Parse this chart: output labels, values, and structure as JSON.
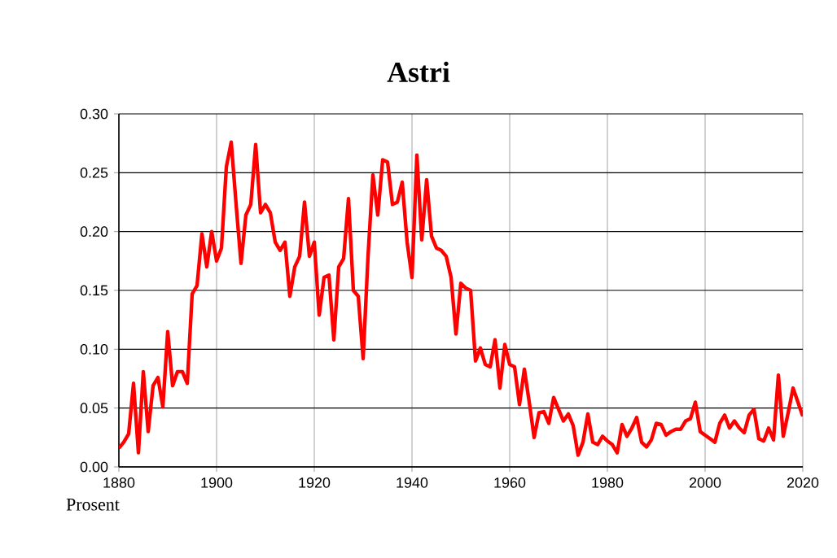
{
  "chart_data": {
    "type": "line",
    "title": "Astri",
    "ylabel": "Prosent",
    "x": [
      1880,
      1881,
      1882,
      1883,
      1884,
      1885,
      1886,
      1887,
      1888,
      1889,
      1890,
      1891,
      1892,
      1893,
      1894,
      1895,
      1896,
      1897,
      1898,
      1899,
      1900,
      1901,
      1902,
      1903,
      1904,
      1905,
      1906,
      1907,
      1908,
      1909,
      1910,
      1911,
      1912,
      1913,
      1914,
      1915,
      1916,
      1917,
      1918,
      1919,
      1920,
      1921,
      1922,
      1923,
      1924,
      1925,
      1926,
      1927,
      1928,
      1929,
      1930,
      1931,
      1932,
      1933,
      1934,
      1935,
      1936,
      1937,
      1938,
      1939,
      1940,
      1941,
      1942,
      1943,
      1944,
      1945,
      1946,
      1947,
      1948,
      1949,
      1950,
      1951,
      1952,
      1953,
      1954,
      1955,
      1956,
      1957,
      1958,
      1959,
      1960,
      1961,
      1962,
      1963,
      1964,
      1965,
      1966,
      1967,
      1968,
      1969,
      1970,
      1971,
      1972,
      1973,
      1974,
      1975,
      1976,
      1977,
      1978,
      1979,
      1980,
      1981,
      1982,
      1983,
      1984,
      1985,
      1986,
      1987,
      1988,
      1989,
      1990,
      1991,
      1992,
      1993,
      1994,
      1995,
      1996,
      1997,
      1998,
      1999,
      2000,
      2001,
      2002,
      2003,
      2004,
      2005,
      2006,
      2007,
      2008,
      2009,
      2010,
      2011,
      2012,
      2013,
      2014,
      2015,
      2016,
      2017,
      2018,
      2019,
      2020
    ],
    "series": [
      {
        "color": "#ff0000",
        "values": [
          0.016,
          0.021,
          0.028,
          0.071,
          0.012,
          0.081,
          0.03,
          0.069,
          0.076,
          0.051,
          0.115,
          0.069,
          0.081,
          0.081,
          0.071,
          0.147,
          0.154,
          0.198,
          0.17,
          0.2,
          0.175,
          0.186,
          0.255,
          0.276,
          0.223,
          0.173,
          0.214,
          0.223,
          0.274,
          0.216,
          0.223,
          0.216,
          0.191,
          0.184,
          0.191,
          0.145,
          0.17,
          0.179,
          0.225,
          0.179,
          0.191,
          0.129,
          0.161,
          0.163,
          0.108,
          0.17,
          0.177,
          0.228,
          0.15,
          0.145,
          0.092,
          0.179,
          0.248,
          0.214,
          0.261,
          0.259,
          0.223,
          0.225,
          0.242,
          0.191,
          0.161,
          0.265,
          0.193,
          0.244,
          0.196,
          0.186,
          0.184,
          0.179,
          0.161,
          0.113,
          0.156,
          0.152,
          0.15,
          0.09,
          0.101,
          0.087,
          0.085,
          0.108,
          0.067,
          0.104,
          0.087,
          0.085,
          0.053,
          0.083,
          0.055,
          0.025,
          0.046,
          0.047,
          0.037,
          0.059,
          0.049,
          0.039,
          0.045,
          0.035,
          0.01,
          0.021,
          0.045,
          0.021,
          0.019,
          0.026,
          0.022,
          0.019,
          0.012,
          0.036,
          0.026,
          0.033,
          0.042,
          0.021,
          0.017,
          0.023,
          0.037,
          0.036,
          0.027,
          0.03,
          0.032,
          0.032,
          0.039,
          0.041,
          0.055,
          0.03,
          0.027,
          0.024,
          0.021,
          0.037,
          0.044,
          0.033,
          0.039,
          0.033,
          0.029,
          0.044,
          0.049,
          0.024,
          0.022,
          0.033,
          0.023,
          0.078,
          0.026,
          0.046,
          0.067,
          0.055,
          0.043
        ]
      }
    ],
    "xlim": [
      1880,
      2020
    ],
    "xticks": [
      1880,
      1900,
      1920,
      1940,
      1960,
      1980,
      2000,
      2020
    ],
    "ylim": [
      0,
      0.3
    ],
    "yticks": [
      {
        "value": 0,
        "label": "0.00"
      },
      {
        "value": 0.05,
        "label": "0.05"
      },
      {
        "value": 0.1,
        "label": "0.10"
      },
      {
        "value": 0.15,
        "label": "0.15"
      },
      {
        "value": 0.2,
        "label": "0.20"
      },
      {
        "value": 0.25,
        "label": "0.25"
      },
      {
        "value": 0.3,
        "label": "0.30"
      }
    ],
    "grid": true,
    "marker": "none",
    "line_style": "solid"
  }
}
